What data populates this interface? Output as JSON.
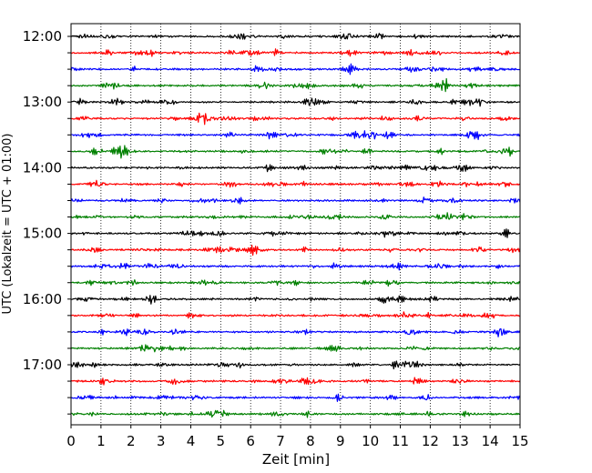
{
  "chart_data": {
    "type": "line",
    "subtype": "helicorder",
    "xlabel": "Zeit  [min]",
    "ylabel": "UTC (Lokalzeit = UTC + 01:00)",
    "xlim": [
      0,
      15
    ],
    "x_ticks": [
      "0",
      "1",
      "2",
      "3",
      "4",
      "5",
      "6",
      "7",
      "8",
      "9",
      "10",
      "11",
      "12",
      "13",
      "14",
      "15"
    ],
    "y_tick_labels": [
      "12:00",
      "13:00",
      "14:00",
      "15:00",
      "16:00",
      "17:00"
    ],
    "grid": "vertical dotted at each minute",
    "trace_colors": [
      "#000000",
      "#ff0000",
      "#0000ff",
      "#008000"
    ],
    "trace_interval_minutes": 15,
    "rows": [
      "12:00",
      "12:15",
      "12:30",
      "12:45",
      "13:00",
      "13:15",
      "13:30",
      "13:45",
      "14:00",
      "14:15",
      "14:30",
      "14:45",
      "15:00",
      "15:15",
      "15:30",
      "15:45",
      "16:00",
      "16:15",
      "16:30",
      "16:45",
      "17:00",
      "17:15",
      "17:30",
      "17:45"
    ]
  }
}
